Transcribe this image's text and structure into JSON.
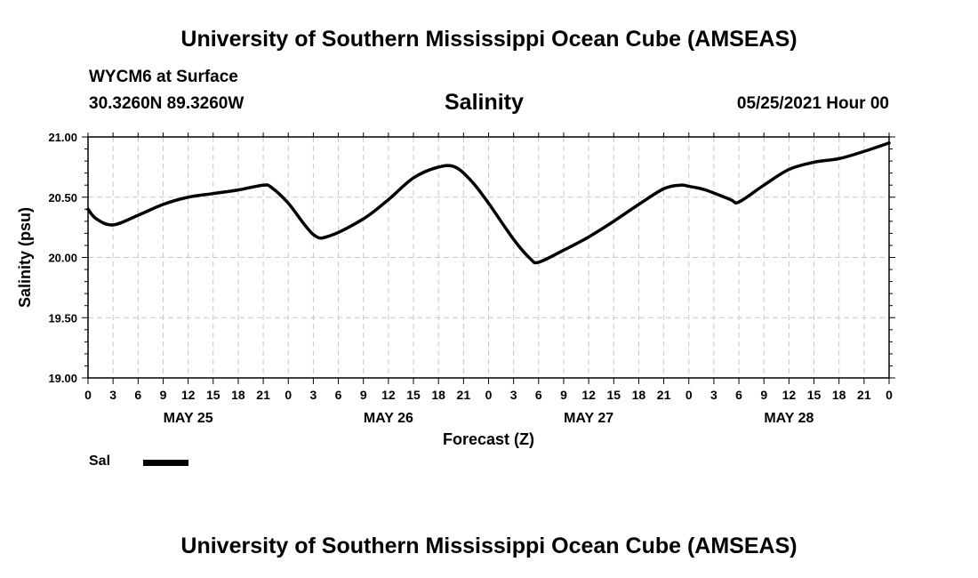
{
  "header": {
    "title": "University of Southern Mississippi Ocean Cube (AMSEAS)",
    "station": "WYCM6 at Surface",
    "coordinates": "30.3260N  89.3260W",
    "run_time": "05/25/2021 Hour 00"
  },
  "footer": {
    "title": "University of Southern Mississippi Ocean Cube (AMSEAS)"
  },
  "legend": {
    "label": "Sal"
  },
  "chart_data": {
    "type": "line",
    "title": "Salinity",
    "xlabel": "Forecast (Z)",
    "ylabel": "Salinity (psu)",
    "xlim": [
      0,
      96
    ],
    "ylim": [
      19.0,
      21.0
    ],
    "grid": true,
    "y_ticks": [
      "19.00",
      "19.50",
      "20.00",
      "20.50",
      "21.00"
    ],
    "x_tick_labels": [
      "0",
      "3",
      "6",
      "9",
      "12",
      "15",
      "18",
      "21",
      "0",
      "3",
      "6",
      "9",
      "12",
      "15",
      "18",
      "21",
      "0",
      "3",
      "6",
      "9",
      "12",
      "15",
      "18",
      "21",
      "0",
      "3",
      "6",
      "9",
      "12",
      "15",
      "18",
      "21",
      "0"
    ],
    "day_labels": [
      {
        "hour": 12,
        "label": "MAY 25"
      },
      {
        "hour": 36,
        "label": "MAY 26"
      },
      {
        "hour": 60,
        "label": "MAY 27"
      },
      {
        "hour": 84,
        "label": "MAY 28"
      }
    ],
    "series": [
      {
        "name": "Sal",
        "color": "#000000",
        "x": [
          0,
          1,
          3,
          6,
          9,
          12,
          15,
          18,
          21,
          22,
          24,
          27,
          29,
          33,
          36,
          39,
          42,
          44,
          46,
          48,
          51,
          53,
          54,
          57,
          60,
          63,
          66,
          69,
          71,
          72,
          74,
          77,
          78,
          81,
          84,
          87,
          90,
          93,
          96
        ],
        "values": [
          20.4,
          20.32,
          20.27,
          20.35,
          20.44,
          20.5,
          20.53,
          20.56,
          20.6,
          20.58,
          20.45,
          20.19,
          20.18,
          20.32,
          20.48,
          20.66,
          20.75,
          20.75,
          20.63,
          20.45,
          20.15,
          19.99,
          19.96,
          20.06,
          20.17,
          20.3,
          20.44,
          20.57,
          20.6,
          20.59,
          20.56,
          20.48,
          20.46,
          20.6,
          20.73,
          20.79,
          20.82,
          20.88,
          20.95
        ]
      }
    ]
  }
}
